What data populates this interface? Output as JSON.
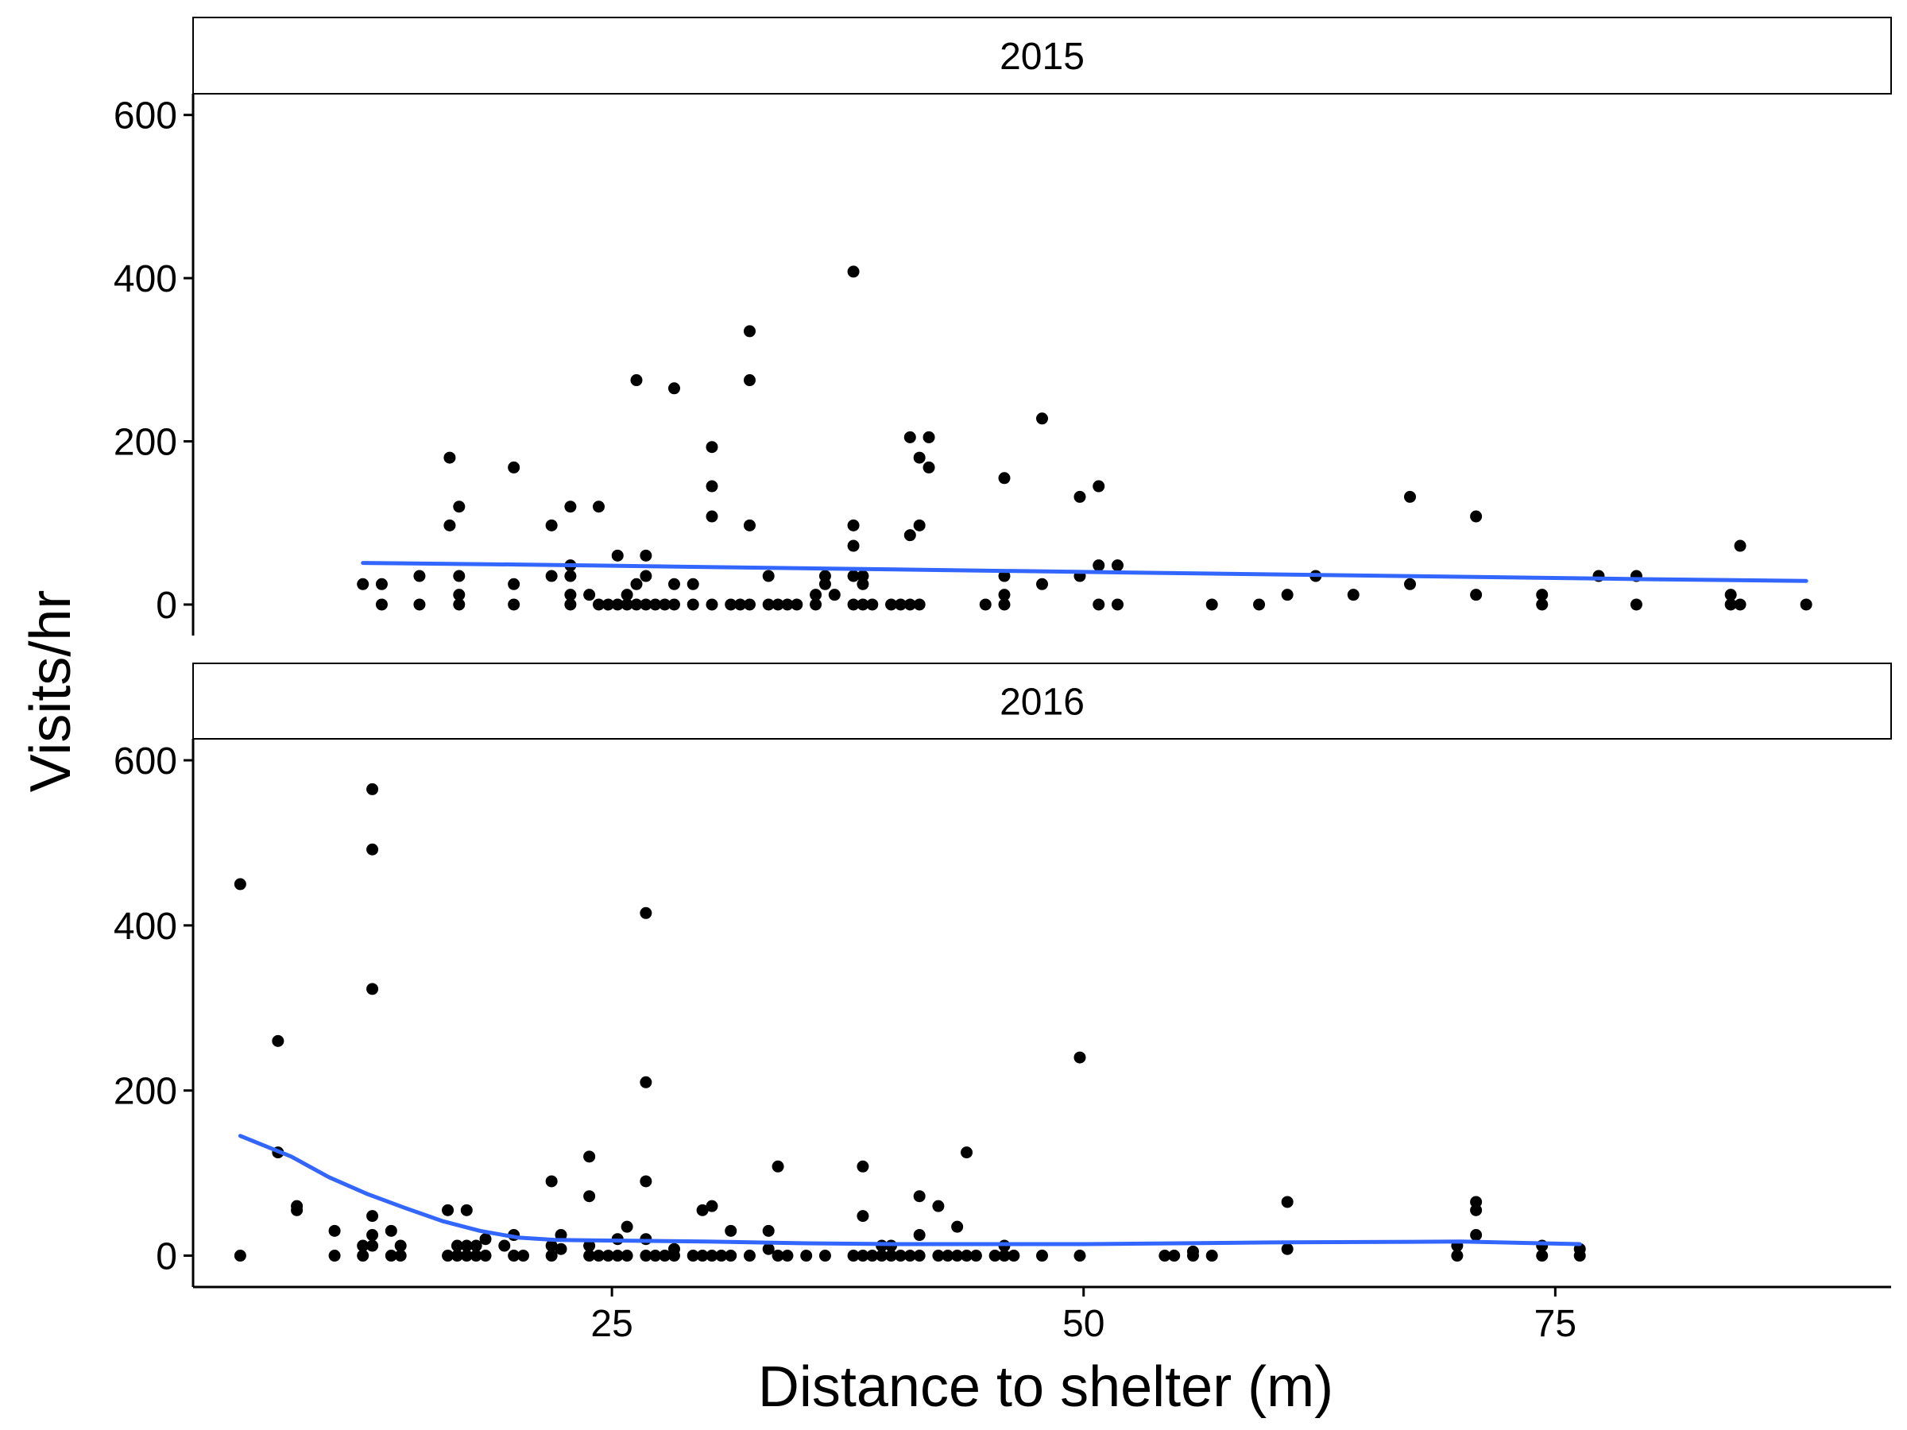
{
  "chart_data": {
    "type": "scatter",
    "xlabel": "Distance to shelter (m)",
    "ylabel": "Visits/hr",
    "xlim": [
      2.8,
      92.8
    ],
    "ylim": [
      -38,
      626
    ],
    "x_ticks": [
      25,
      50,
      75
    ],
    "y_ticks": [
      0,
      200,
      400,
      600
    ],
    "grid": false,
    "colors": {
      "points": "#000000",
      "smooth": "#3366FF",
      "strip_fill": "#FFFFFF",
      "axis": "#000000"
    },
    "facets": [
      {
        "label": "2015",
        "points": [
          [
            11.8,
            25
          ],
          [
            12.8,
            25
          ],
          [
            12.8,
            0
          ],
          [
            14.8,
            35
          ],
          [
            14.8,
            0
          ],
          [
            16.4,
            180
          ],
          [
            16.4,
            97
          ],
          [
            16.9,
            120
          ],
          [
            16.9,
            35
          ],
          [
            16.9,
            12
          ],
          [
            16.9,
            0
          ],
          [
            19.8,
            168
          ],
          [
            19.8,
            25
          ],
          [
            19.8,
            0
          ],
          [
            21.8,
            97
          ],
          [
            21.8,
            35
          ],
          [
            22.8,
            120
          ],
          [
            22.8,
            48
          ],
          [
            22.8,
            35
          ],
          [
            22.8,
            12
          ],
          [
            22.8,
            0
          ],
          [
            23.8,
            12
          ],
          [
            24.3,
            120
          ],
          [
            24.3,
            0
          ],
          [
            24.8,
            0
          ],
          [
            25.3,
            60
          ],
          [
            25.3,
            0
          ],
          [
            25.8,
            12
          ],
          [
            25.8,
            0
          ],
          [
            26.3,
            275
          ],
          [
            26.3,
            25
          ],
          [
            26.3,
            0
          ],
          [
            26.8,
            60
          ],
          [
            26.8,
            35
          ],
          [
            26.8,
            0
          ],
          [
            27.3,
            0
          ],
          [
            27.8,
            0
          ],
          [
            28.3,
            265
          ],
          [
            28.3,
            25
          ],
          [
            28.3,
            0
          ],
          [
            29.3,
            25
          ],
          [
            29.3,
            0
          ],
          [
            30.3,
            193
          ],
          [
            30.3,
            145
          ],
          [
            30.3,
            108
          ],
          [
            30.3,
            0
          ],
          [
            31.3,
            0
          ],
          [
            31.8,
            0
          ],
          [
            32.3,
            335
          ],
          [
            32.3,
            275
          ],
          [
            32.3,
            97
          ],
          [
            32.3,
            0
          ],
          [
            33.3,
            35
          ],
          [
            33.3,
            0
          ],
          [
            33.8,
            0
          ],
          [
            34.3,
            0
          ],
          [
            34.8,
            0
          ],
          [
            35.8,
            12
          ],
          [
            35.8,
            0
          ],
          [
            36.3,
            35
          ],
          [
            36.3,
            25
          ],
          [
            36.8,
            12
          ],
          [
            37.8,
            408
          ],
          [
            37.8,
            97
          ],
          [
            37.8,
            72
          ],
          [
            37.8,
            35
          ],
          [
            37.8,
            0
          ],
          [
            38.3,
            35
          ],
          [
            38.3,
            25
          ],
          [
            38.3,
            0
          ],
          [
            38.8,
            0
          ],
          [
            39.8,
            0
          ],
          [
            40.3,
            0
          ],
          [
            40.8,
            205
          ],
          [
            40.8,
            85
          ],
          [
            40.8,
            0
          ],
          [
            41.3,
            180
          ],
          [
            41.3,
            97
          ],
          [
            41.3,
            0
          ],
          [
            41.8,
            205
          ],
          [
            41.8,
            168
          ],
          [
            44.8,
            0
          ],
          [
            45.8,
            155
          ],
          [
            45.8,
            35
          ],
          [
            45.8,
            12
          ],
          [
            45.8,
            0
          ],
          [
            47.8,
            228
          ],
          [
            47.8,
            25
          ],
          [
            49.8,
            132
          ],
          [
            49.8,
            35
          ],
          [
            50.8,
            145
          ],
          [
            50.8,
            48
          ],
          [
            50.8,
            0
          ],
          [
            51.8,
            48
          ],
          [
            51.8,
            0
          ],
          [
            56.8,
            0
          ],
          [
            59.3,
            0
          ],
          [
            60.8,
            12
          ],
          [
            62.3,
            35
          ],
          [
            64.3,
            12
          ],
          [
            67.3,
            132
          ],
          [
            67.3,
            25
          ],
          [
            70.8,
            108
          ],
          [
            70.8,
            12
          ],
          [
            74.3,
            12
          ],
          [
            74.3,
            0
          ],
          [
            77.3,
            35
          ],
          [
            79.3,
            35
          ],
          [
            79.3,
            0
          ],
          [
            84.3,
            12
          ],
          [
            84.3,
            0
          ],
          [
            84.8,
            72
          ],
          [
            84.8,
            0
          ],
          [
            88.3,
            0
          ]
        ],
        "smooth": [
          [
            11.8,
            51
          ],
          [
            20,
            49
          ],
          [
            30,
            46
          ],
          [
            40,
            43
          ],
          [
            50,
            40
          ],
          [
            60,
            37
          ],
          [
            70,
            34
          ],
          [
            80,
            31
          ],
          [
            88.3,
            29
          ]
        ]
      },
      {
        "label": "2016",
        "points": [
          [
            5.3,
            450
          ],
          [
            5.3,
            0
          ],
          [
            7.3,
            260
          ],
          [
            7.3,
            125
          ],
          [
            8.3,
            60
          ],
          [
            8.3,
            55
          ],
          [
            10.3,
            30
          ],
          [
            10.3,
            0
          ],
          [
            11.8,
            12
          ],
          [
            11.8,
            0
          ],
          [
            12.3,
            565
          ],
          [
            12.3,
            492
          ],
          [
            12.3,
            323
          ],
          [
            12.3,
            48
          ],
          [
            12.3,
            25
          ],
          [
            12.3,
            12
          ],
          [
            13.3,
            30
          ],
          [
            13.3,
            0
          ],
          [
            13.8,
            12
          ],
          [
            13.8,
            0
          ],
          [
            16.3,
            55
          ],
          [
            16.3,
            0
          ],
          [
            16.8,
            12
          ],
          [
            16.8,
            0
          ],
          [
            17.3,
            55
          ],
          [
            17.3,
            12
          ],
          [
            17.3,
            0
          ],
          [
            17.8,
            12
          ],
          [
            17.8,
            0
          ],
          [
            18.3,
            20
          ],
          [
            18.3,
            0
          ],
          [
            19.3,
            12
          ],
          [
            19.8,
            25
          ],
          [
            19.8,
            0
          ],
          [
            20.3,
            0
          ],
          [
            21.8,
            90
          ],
          [
            21.8,
            12
          ],
          [
            21.8,
            0
          ],
          [
            22.3,
            25
          ],
          [
            22.3,
            8
          ],
          [
            23.8,
            120
          ],
          [
            23.8,
            72
          ],
          [
            23.8,
            12
          ],
          [
            23.8,
            0
          ],
          [
            24.3,
            0
          ],
          [
            24.8,
            0
          ],
          [
            25.3,
            20
          ],
          [
            25.3,
            0
          ],
          [
            25.8,
            35
          ],
          [
            25.8,
            0
          ],
          [
            26.8,
            415
          ],
          [
            26.8,
            210
          ],
          [
            26.8,
            90
          ],
          [
            26.8,
            20
          ],
          [
            26.8,
            0
          ],
          [
            27.3,
            0
          ],
          [
            27.8,
            0
          ],
          [
            28.3,
            8
          ],
          [
            28.3,
            0
          ],
          [
            29.3,
            0
          ],
          [
            29.8,
            55
          ],
          [
            29.8,
            0
          ],
          [
            30.3,
            60
          ],
          [
            30.3,
            0
          ],
          [
            30.8,
            0
          ],
          [
            31.3,
            30
          ],
          [
            31.3,
            0
          ],
          [
            32.3,
            0
          ],
          [
            33.3,
            30
          ],
          [
            33.3,
            8
          ],
          [
            33.8,
            108
          ],
          [
            33.8,
            0
          ],
          [
            34.3,
            0
          ],
          [
            35.3,
            0
          ],
          [
            36.3,
            0
          ],
          [
            37.8,
            0
          ],
          [
            38.3,
            108
          ],
          [
            38.3,
            48
          ],
          [
            38.3,
            0
          ],
          [
            38.8,
            0
          ],
          [
            39.3,
            12
          ],
          [
            39.3,
            0
          ],
          [
            39.8,
            12
          ],
          [
            39.8,
            0
          ],
          [
            40.3,
            0
          ],
          [
            40.8,
            0
          ],
          [
            41.3,
            72
          ],
          [
            41.3,
            25
          ],
          [
            41.3,
            0
          ],
          [
            42.3,
            60
          ],
          [
            42.3,
            0
          ],
          [
            42.8,
            0
          ],
          [
            43.3,
            35
          ],
          [
            43.3,
            0
          ],
          [
            43.8,
            125
          ],
          [
            43.8,
            0
          ],
          [
            44.3,
            0
          ],
          [
            45.3,
            0
          ],
          [
            45.8,
            12
          ],
          [
            45.8,
            0
          ],
          [
            46.3,
            0
          ],
          [
            47.8,
            0
          ],
          [
            49.8,
            240
          ],
          [
            49.8,
            0
          ],
          [
            54.3,
            0
          ],
          [
            54.8,
            0
          ],
          [
            55.8,
            5
          ],
          [
            55.8,
            0
          ],
          [
            56.8,
            0
          ],
          [
            60.8,
            65
          ],
          [
            60.8,
            8
          ],
          [
            69.8,
            12
          ],
          [
            69.8,
            0
          ],
          [
            70.8,
            65
          ],
          [
            70.8,
            55
          ],
          [
            70.8,
            25
          ],
          [
            74.3,
            12
          ],
          [
            74.3,
            0
          ],
          [
            76.3,
            8
          ],
          [
            76.3,
            0
          ]
        ],
        "smooth": [
          [
            5.3,
            145
          ],
          [
            8,
            120
          ],
          [
            10,
            95
          ],
          [
            12,
            75
          ],
          [
            14,
            58
          ],
          [
            16,
            42
          ],
          [
            18,
            30
          ],
          [
            20,
            22
          ],
          [
            22,
            19
          ],
          [
            26,
            18
          ],
          [
            30,
            17
          ],
          [
            35,
            15
          ],
          [
            40,
            14
          ],
          [
            50,
            14
          ],
          [
            60,
            16
          ],
          [
            70,
            17
          ],
          [
            76.3,
            14
          ]
        ]
      }
    ]
  }
}
